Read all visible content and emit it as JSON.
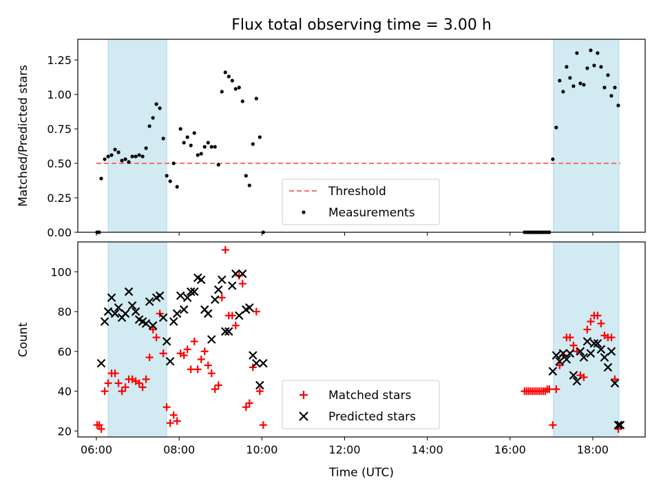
{
  "chart_data": [
    {
      "type": "scatter",
      "title": "Flux total observing time = 3.00 h",
      "xlabel": "",
      "ylabel": "Matched/Predicted stars",
      "xlim": [
        "05:33",
        "19:16"
      ],
      "ylim": [
        0,
        1.4
      ],
      "yticks": [
        0.0,
        0.25,
        0.5,
        0.75,
        1.0,
        1.25
      ],
      "ytick_labels": [
        "0.00",
        "0.25",
        "0.50",
        "0.75",
        "1.00",
        "1.25"
      ],
      "shaded_intervals": [
        [
          "06:17",
          "07:42"
        ],
        [
          "17:03",
          "18:38"
        ]
      ],
      "shade_color": "#add8e6",
      "threshold": {
        "name": "Threshold",
        "y": 0.5,
        "x_range": [
          "06:00",
          "18:40"
        ],
        "color": "#ff6b6b",
        "style": "dashed"
      },
      "series": [
        {
          "name": "Measurements",
          "color": "#000000",
          "marker": "dot",
          "x": [
            "06:01",
            "06:04",
            "06:07",
            "06:12",
            "06:17",
            "06:22",
            "06:27",
            "06:32",
            "06:37",
            "06:42",
            "06:47",
            "06:52",
            "06:57",
            "07:02",
            "07:07",
            "07:12",
            "07:17",
            "07:22",
            "07:27",
            "07:32",
            "07:37",
            "07:42",
            "07:47",
            "07:52",
            "07:57",
            "08:02",
            "08:07",
            "08:12",
            "08:17",
            "08:22",
            "08:27",
            "08:32",
            "08:37",
            "08:42",
            "08:47",
            "08:52",
            "08:57",
            "09:02",
            "09:07",
            "09:12",
            "09:17",
            "09:22",
            "09:27",
            "09:32",
            "09:37",
            "09:42",
            "09:47",
            "09:52",
            "09:57",
            "10:02",
            "16:21",
            "16:24",
            "16:27",
            "16:30",
            "16:33",
            "16:36",
            "16:39",
            "16:42",
            "16:45",
            "16:48",
            "16:51",
            "16:54",
            "16:57",
            "17:02",
            "17:07",
            "17:12",
            "17:17",
            "17:22",
            "17:27",
            "17:32",
            "17:37",
            "17:42",
            "17:47",
            "17:52",
            "17:57",
            "18:02",
            "18:07",
            "18:12",
            "18:17",
            "18:22",
            "18:27",
            "18:32",
            "18:37"
          ],
          "y": [
            0.0,
            0.0,
            0.39,
            0.53,
            0.55,
            0.56,
            0.6,
            0.58,
            0.52,
            0.53,
            0.51,
            0.55,
            0.55,
            0.56,
            0.55,
            0.61,
            0.77,
            0.83,
            0.93,
            0.9,
            0.68,
            0.41,
            0.37,
            0.5,
            0.33,
            0.75,
            0.65,
            0.69,
            0.63,
            0.72,
            0.56,
            0.57,
            0.62,
            0.65,
            0.62,
            0.62,
            0.49,
            1.02,
            1.16,
            1.13,
            1.1,
            1.04,
            1.05,
            0.95,
            0.41,
            0.34,
            0.64,
            0.97,
            0.69,
            0.0,
            0.0,
            0.0,
            0.0,
            0.0,
            0.0,
            0.0,
            0.0,
            0.0,
            0.0,
            0.0,
            0.0,
            0.0,
            0.0,
            0.53,
            0.76,
            1.1,
            1.02,
            1.2,
            1.12,
            1.06,
            1.3,
            1.08,
            1.07,
            1.19,
            1.32,
            1.21,
            1.3,
            1.2,
            1.05,
            1.14,
            0.99,
            1.05,
            0.92
          ]
        }
      ],
      "legend": {
        "position": "bottom-center",
        "entries": [
          "Threshold",
          "Measurements"
        ]
      }
    },
    {
      "type": "scatter",
      "title": "",
      "xlabel": "Time (UTC)",
      "ylabel": "Count",
      "xlim": [
        "05:33",
        "19:16"
      ],
      "ylim": [
        17,
        115
      ],
      "yticks": [
        20,
        40,
        60,
        80,
        100
      ],
      "ytick_labels": [
        "20",
        "40",
        "60",
        "80",
        "100"
      ],
      "xticks": [
        "06:00",
        "08:00",
        "10:00",
        "12:00",
        "14:00",
        "16:00",
        "18:00"
      ],
      "shaded_intervals": [
        [
          "06:17",
          "07:42"
        ],
        [
          "17:03",
          "18:38"
        ]
      ],
      "shade_color": "#add8e6",
      "series": [
        {
          "name": "Matched stars",
          "color": "#ff0000",
          "marker": "plus",
          "x": [
            "06:01",
            "06:04",
            "06:07",
            "06:12",
            "06:17",
            "06:22",
            "06:27",
            "06:32",
            "06:37",
            "06:42",
            "06:47",
            "06:52",
            "06:57",
            "07:02",
            "07:07",
            "07:12",
            "07:17",
            "07:22",
            "07:27",
            "07:32",
            "07:37",
            "07:42",
            "07:47",
            "07:52",
            "07:57",
            "08:02",
            "08:07",
            "08:12",
            "08:17",
            "08:22",
            "08:27",
            "08:32",
            "08:37",
            "08:42",
            "08:47",
            "08:52",
            "08:57",
            "09:02",
            "09:07",
            "09:12",
            "09:17",
            "09:22",
            "09:27",
            "09:32",
            "09:37",
            "09:42",
            "09:47",
            "09:52",
            "09:57",
            "10:02",
            "16:21",
            "16:24",
            "16:27",
            "16:30",
            "16:33",
            "16:36",
            "16:39",
            "16:42",
            "16:45",
            "16:48",
            "16:51",
            "16:54",
            "16:57",
            "17:02",
            "17:07",
            "17:12",
            "17:17",
            "17:22",
            "17:27",
            "17:32",
            "17:37",
            "17:42",
            "17:47",
            "17:52",
            "17:57",
            "18:02",
            "18:07",
            "18:12",
            "18:17",
            "18:22",
            "18:27",
            "18:32",
            "18:37"
          ],
          "y": [
            23,
            23,
            21,
            40,
            44,
            49,
            49,
            44,
            40,
            42,
            46,
            46,
            45,
            44,
            42,
            46,
            57,
            71,
            67,
            79,
            59,
            32,
            24,
            28,
            25,
            59,
            58,
            61,
            51,
            65,
            51,
            56,
            60,
            53,
            49,
            41,
            43,
            87,
            111,
            78,
            78,
            73,
            98,
            94,
            32,
            34,
            52,
            80,
            40,
            23,
            40,
            40,
            40,
            40,
            40,
            40,
            40,
            40,
            40,
            40,
            40,
            41,
            41,
            23,
            41,
            53,
            58,
            67,
            67,
            63,
            60,
            48,
            47,
            71,
            75,
            78,
            78,
            74,
            68,
            67,
            67,
            46,
            21
          ]
        },
        {
          "name": "Predicted stars",
          "color": "#000000",
          "marker": "x",
          "x": [
            "06:07",
            "06:12",
            "06:17",
            "06:22",
            "06:27",
            "06:32",
            "06:37",
            "06:42",
            "06:47",
            "06:52",
            "06:57",
            "07:02",
            "07:07",
            "07:12",
            "07:17",
            "07:22",
            "07:27",
            "07:32",
            "07:37",
            "07:42",
            "07:47",
            "07:52",
            "07:57",
            "08:02",
            "08:07",
            "08:12",
            "08:17",
            "08:22",
            "08:27",
            "08:32",
            "08:37",
            "08:42",
            "08:47",
            "08:52",
            "08:57",
            "09:02",
            "09:07",
            "09:12",
            "09:17",
            "09:22",
            "09:27",
            "09:32",
            "09:37",
            "09:42",
            "09:47",
            "09:52",
            "09:57",
            "10:02",
            "17:02",
            "17:07",
            "17:12",
            "17:17",
            "17:22",
            "17:27",
            "17:32",
            "17:37",
            "17:42",
            "17:47",
            "17:52",
            "17:57",
            "18:02",
            "18:07",
            "18:12",
            "18:17",
            "18:22",
            "18:27",
            "18:32",
            "18:37",
            "18:40"
          ],
          "y": [
            54,
            75,
            80,
            87,
            79,
            82,
            77,
            79,
            90,
            83,
            80,
            76,
            75,
            74,
            85,
            73,
            87,
            88,
            77,
            65,
            55,
            75,
            79,
            88,
            81,
            87,
            90,
            90,
            97,
            96,
            81,
            79,
            66,
            86,
            91,
            96,
            70,
            70,
            93,
            99,
            78,
            99,
            81,
            82,
            58,
            54,
            43,
            54,
            50,
            58,
            55,
            59,
            56,
            59,
            48,
            45,
            60,
            57,
            65,
            59,
            64,
            64,
            61,
            57,
            52,
            60,
            44,
            23,
            23
          ]
        }
      ],
      "legend": {
        "position": "bottom-center",
        "entries": [
          "Matched stars",
          "Predicted stars"
        ]
      }
    }
  ]
}
